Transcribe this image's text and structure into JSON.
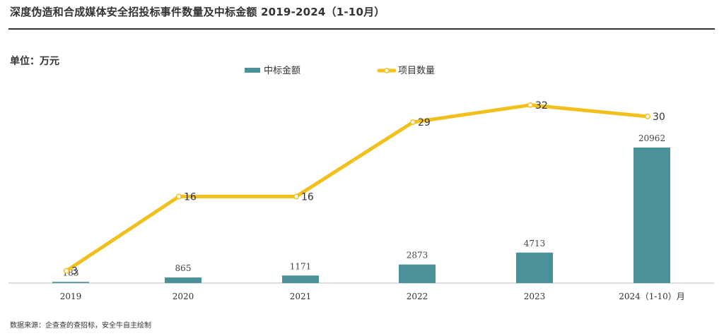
{
  "title": "深度伪造和合成媒体安全招投标事件数量及中标金额 2019-2024（1-10月）",
  "unit_label": "单位：万元",
  "source_note": "数据来源：企查查的查招标，安全牛自主绘制",
  "chart_data": {
    "type": "bar",
    "title": "深度伪造和合成媒体安全招投标事件数量及中标金额 2019-2024（1-10月）",
    "categories": [
      "2019",
      "2020",
      "2021",
      "2022",
      "2023",
      "2024（1-10）月"
    ],
    "series": [
      {
        "name": "中标金额",
        "type": "bar",
        "color": "#4a9199",
        "values": [
          183,
          865,
          1171,
          2873,
          4713,
          20962
        ]
      },
      {
        "name": "项目数量",
        "type": "line",
        "color": "#f2c01c",
        "values": [
          3,
          16,
          16,
          29,
          32,
          30
        ]
      }
    ],
    "legend_position": "top-center",
    "grid": false
  }
}
